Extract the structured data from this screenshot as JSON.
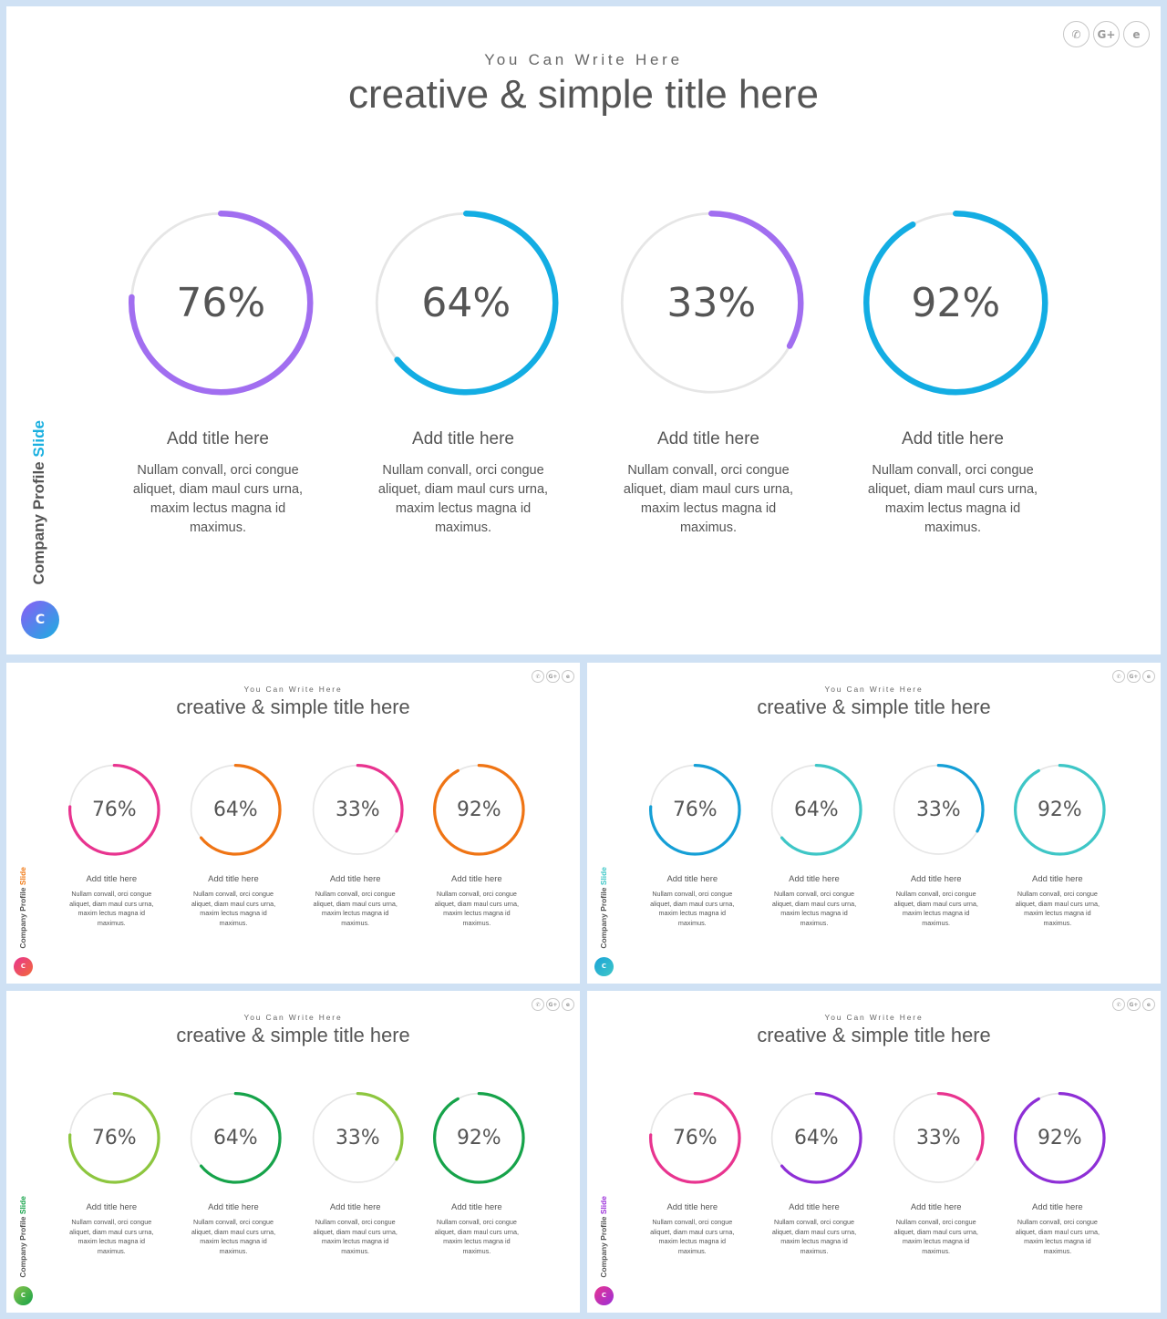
{
  "slides": [
    {
      "subtitle": "You Can Write Here",
      "title": "creative & simple title here",
      "brand": {
        "prefix": "Company Profile",
        "highlight": "Slide",
        "highlight_color": "#1ab0e0",
        "logo_letter": "C",
        "logo_colors": [
          "#8b5cf6",
          "#1ab0e0"
        ]
      },
      "share": {
        "whatsapp": "✆",
        "google_plus": "G+",
        "web": "e"
      },
      "stats": [
        {
          "percent": "76%",
          "value": 76,
          "color": "#a16ef0",
          "title": "Add title here",
          "desc": "Nullam convall, orci congue aliquet, diam maul curs urna, maxim lectus magna id maximus."
        },
        {
          "percent": "64%",
          "value": 64,
          "color": "#13ade3",
          "title": "Add title here",
          "desc": "Nullam convall, orci congue aliquet, diam maul curs urna, maxim lectus magna id maximus."
        },
        {
          "percent": "33%",
          "value": 33,
          "color": "#a16ef0",
          "title": "Add title here",
          "desc": "Nullam convall, orci congue aliquet, diam maul curs urna, maxim lectus magna id maximus."
        },
        {
          "percent": "92%",
          "value": 92,
          "color": "#13ade3",
          "title": "Add title here",
          "desc": "Nullam convall, orci congue aliquet, diam maul curs urna, maxim lectus magna id maximus."
        }
      ]
    },
    {
      "subtitle": "You Can Write Here",
      "title": "creative & simple title here",
      "brand": {
        "prefix": "Company Profile",
        "highlight": "Slide",
        "highlight_color": "#f07a16",
        "logo_letter": "C",
        "logo_colors": [
          "#e8348f",
          "#f26a3a"
        ]
      },
      "share": {
        "whatsapp": "✆",
        "google_plus": "G+",
        "web": "e"
      },
      "stats": [
        {
          "percent": "76%",
          "value": 76,
          "color": "#e8348f",
          "title": "Add title here",
          "desc": "Nullam convall, orci congue aliquet, diam maul curs urna, maxim lectus magna id maximus."
        },
        {
          "percent": "64%",
          "value": 64,
          "color": "#ef7414",
          "title": "Add title here",
          "desc": "Nullam convall, orci congue aliquet, diam maul curs urna, maxim lectus magna id maximus."
        },
        {
          "percent": "33%",
          "value": 33,
          "color": "#e8348f",
          "title": "Add title here",
          "desc": "Nullam convall, orci congue aliquet, diam maul curs urna, maxim lectus magna id maximus."
        },
        {
          "percent": "92%",
          "value": 92,
          "color": "#ef7414",
          "title": "Add title here",
          "desc": "Nullam convall, orci congue aliquet, diam maul curs urna, maxim lectus magna id maximus."
        }
      ]
    },
    {
      "subtitle": "You Can Write Here",
      "title": "creative & simple title here",
      "brand": {
        "prefix": "Company Profile",
        "highlight": "Slide",
        "highlight_color": "#3ec7c7",
        "logo_letter": "C",
        "logo_colors": [
          "#1ba3d8",
          "#3ec7c7"
        ]
      },
      "share": {
        "whatsapp": "✆",
        "google_plus": "G+",
        "web": "e"
      },
      "stats": [
        {
          "percent": "76%",
          "value": 76,
          "color": "#159fd6",
          "title": "Add title here",
          "desc": "Nullam convall, orci congue aliquet, diam maul curs urna, maxim lectus magna id maximus."
        },
        {
          "percent": "64%",
          "value": 64,
          "color": "#3ec6c6",
          "title": "Add title here",
          "desc": "Nullam convall, orci congue aliquet, diam maul curs urna, maxim lectus magna id maximus."
        },
        {
          "percent": "33%",
          "value": 33,
          "color": "#159fd6",
          "title": "Add title here",
          "desc": "Nullam convall, orci congue aliquet, diam maul curs urna, maxim lectus magna id maximus."
        },
        {
          "percent": "92%",
          "value": 92,
          "color": "#3ec6c6",
          "title": "Add title here",
          "desc": "Nullam convall, orci congue aliquet, diam maul curs urna, maxim lectus magna id maximus."
        }
      ]
    },
    {
      "subtitle": "You Can Write Here",
      "title": "creative & simple title here",
      "brand": {
        "prefix": "Company Profile",
        "highlight": "Slide",
        "highlight_color": "#16a34a",
        "logo_letter": "C",
        "logo_colors": [
          "#8bc34a",
          "#16a34a"
        ]
      },
      "share": {
        "whatsapp": "✆",
        "google_plus": "G+",
        "web": "e"
      },
      "stats": [
        {
          "percent": "76%",
          "value": 76,
          "color": "#8dc63f",
          "title": "Add title here",
          "desc": "Nullam convall, orci congue aliquet, diam maul curs urna, maxim lectus magna id maximus."
        },
        {
          "percent": "64%",
          "value": 64,
          "color": "#16a34a",
          "title": "Add title here",
          "desc": "Nullam convall, orci congue aliquet, diam maul curs urna, maxim lectus magna id maximus."
        },
        {
          "percent": "33%",
          "value": 33,
          "color": "#8dc63f",
          "title": "Add title here",
          "desc": "Nullam convall, orci congue aliquet, diam maul curs urna, maxim lectus magna id maximus."
        },
        {
          "percent": "92%",
          "value": 92,
          "color": "#16a34a",
          "title": "Add title here",
          "desc": "Nullam convall, orci congue aliquet, diam maul curs urna, maxim lectus magna id maximus."
        }
      ]
    },
    {
      "subtitle": "You Can Write Here",
      "title": "creative & simple title here",
      "brand": {
        "prefix": "Company Profile",
        "highlight": "Slide",
        "highlight_color": "#9b30d9",
        "logo_letter": "C",
        "logo_colors": [
          "#e8348f",
          "#9b30d9"
        ]
      },
      "share": {
        "whatsapp": "✆",
        "google_plus": "G+",
        "web": "e"
      },
      "stats": [
        {
          "percent": "76%",
          "value": 76,
          "color": "#e8348f",
          "title": "Add title here",
          "desc": "Nullam convall, orci congue aliquet, diam maul curs urna, maxim lectus magna id maximus."
        },
        {
          "percent": "64%",
          "value": 64,
          "color": "#8e2fd6",
          "title": "Add title here",
          "desc": "Nullam convall, orci congue aliquet, diam maul curs urna, maxim lectus magna id maximus."
        },
        {
          "percent": "33%",
          "value": 33,
          "color": "#e8348f",
          "title": "Add title here",
          "desc": "Nullam convall, orci congue aliquet, diam maul curs urna, maxim lectus magna id maximus."
        },
        {
          "percent": "92%",
          "value": 92,
          "color": "#8e2fd6",
          "title": "Add title here",
          "desc": "Nullam convall, orci congue aliquet, diam maul curs urna, maxim lectus magna id maximus."
        }
      ]
    }
  ]
}
